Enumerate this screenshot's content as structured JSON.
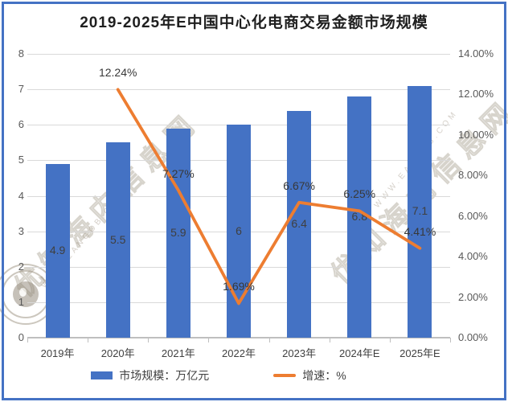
{
  "title": "2019-2025年E中国中心化电商交易金额市场规模",
  "frame": {
    "border_color": "#4472C4"
  },
  "colors": {
    "bar": "#4472C4",
    "line": "#ED7D31",
    "gridline": "#d9d9d9",
    "axis": "#bfbfbf",
    "tick_text": "#595959"
  },
  "watermark": {
    "cn_text": "优知海内信息网",
    "latin_text": "WWW.EANGOB.COM"
  },
  "legend": [
    {
      "label": "市场规模：万亿元",
      "type": "bar",
      "color": "#4472C4"
    },
    {
      "label": "增速：%",
      "type": "line",
      "color": "#ED7D31"
    }
  ],
  "chart_data": {
    "type": "bar+line",
    "title": "2019-2025年E中国中心化电商交易金额市场规模",
    "categories": [
      "2019年",
      "2020年",
      "2021年",
      "2022年",
      "2023年",
      "2024年E",
      "2025年E"
    ],
    "series": [
      {
        "name": "市场规模：万亿元",
        "type": "bar",
        "axis": "left",
        "color": "#4472C4",
        "values": [
          4.9,
          5.5,
          5.9,
          6,
          6.4,
          6.8,
          7.1
        ],
        "labels": [
          "4.9",
          "5.5",
          "5.9",
          "6",
          "6.4",
          "6.8",
          "7.1"
        ]
      },
      {
        "name": "增速：%",
        "type": "line",
        "axis": "right",
        "color": "#ED7D31",
        "values": [
          null,
          12.24,
          7.27,
          1.69,
          6.67,
          6.25,
          4.41
        ],
        "labels": [
          null,
          "12.24%",
          "7.27%",
          "1.69%",
          "6.67%",
          "6.25%",
          "4.41%"
        ]
      }
    ],
    "axes": {
      "left": {
        "min": 0,
        "max": 8,
        "step": 1,
        "tick_labels": [
          "0",
          "1",
          "2",
          "3",
          "4",
          "5",
          "6",
          "7",
          "8"
        ]
      },
      "right": {
        "min": 0,
        "max": 14,
        "step": 2,
        "tick_labels": [
          "0.00%",
          "2.00%",
          "4.00%",
          "6.00%",
          "8.00%",
          "10.00%",
          "12.00%",
          "14.00%"
        ]
      }
    },
    "grid": true,
    "legend_position": "bottom"
  }
}
